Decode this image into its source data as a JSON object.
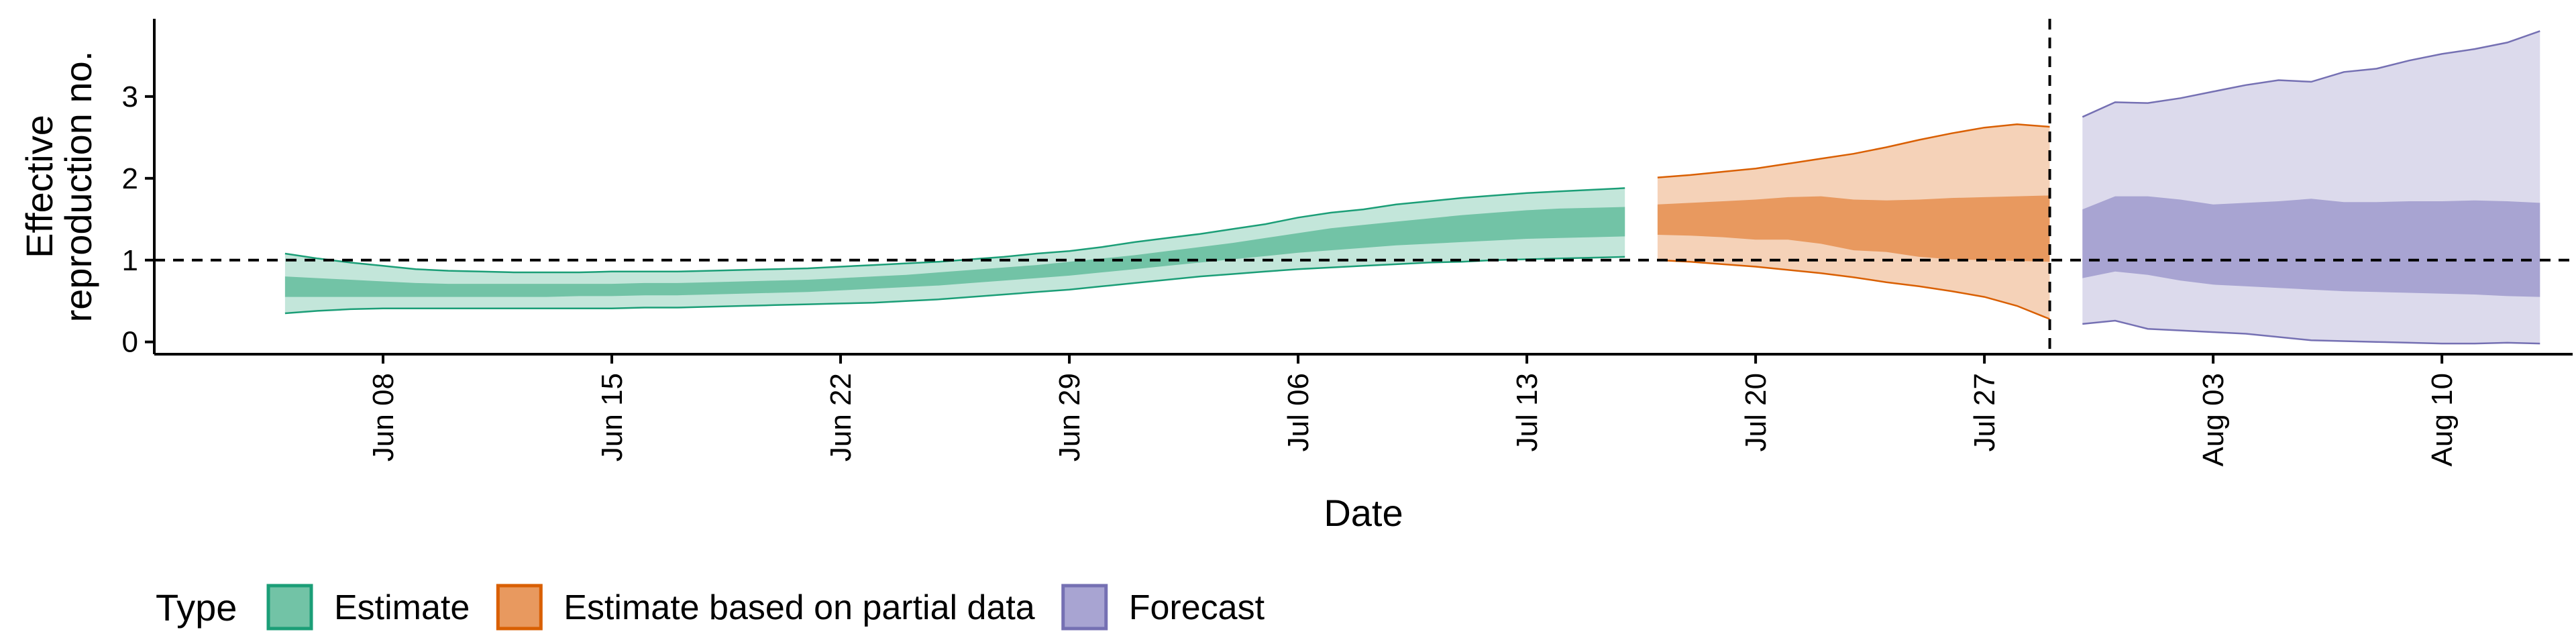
{
  "chart_data": {
    "type": "area",
    "title": "",
    "xlabel": "Date",
    "ylabel": [
      "Effective",
      "reproduction no."
    ],
    "xlim": [
      "2020-06-01",
      "2020-08-14"
    ],
    "ylim": [
      -0.15,
      3.95
    ],
    "yticks": [
      0,
      1,
      2,
      3
    ],
    "xticks": [
      {
        "date": "2020-06-08",
        "label": "Jun 08"
      },
      {
        "date": "2020-06-15",
        "label": "Jun 15"
      },
      {
        "date": "2020-06-22",
        "label": "Jun 22"
      },
      {
        "date": "2020-06-29",
        "label": "Jun 29"
      },
      {
        "date": "2020-07-06",
        "label": "Jul 06"
      },
      {
        "date": "2020-07-13",
        "label": "Jul 13"
      },
      {
        "date": "2020-07-20",
        "label": "Jul 20"
      },
      {
        "date": "2020-07-27",
        "label": "Jul 27"
      },
      {
        "date": "2020-08-03",
        "label": "Aug 03"
      },
      {
        "date": "2020-08-10",
        "label": "Aug 10"
      }
    ],
    "reference_lines": [
      {
        "axis": "y",
        "value": 1,
        "style": "dashed"
      },
      {
        "axis": "x",
        "value": "2020-07-29",
        "style": "dashed"
      }
    ],
    "legend": {
      "title": "Type",
      "position": "bottom-left",
      "entries": [
        {
          "label": "Estimate",
          "fill": "#72c3a6",
          "stroke": "#1b9e77"
        },
        {
          "label": "Estimate based on partial data",
          "fill": "#e8995f",
          "stroke": "#d95f02"
        },
        {
          "label": "Forecast",
          "fill": "#a8a4d2",
          "stroke": "#7570b3"
        }
      ]
    },
    "series": [
      {
        "name": "Estimate",
        "colors": {
          "outer": "#c3e6da",
          "inner": "#72c3a6",
          "line": "#1b9e77"
        },
        "x": [
          "2020-06-05",
          "2020-06-06",
          "2020-06-07",
          "2020-06-08",
          "2020-06-09",
          "2020-06-10",
          "2020-06-11",
          "2020-06-12",
          "2020-06-13",
          "2020-06-14",
          "2020-06-15",
          "2020-06-16",
          "2020-06-17",
          "2020-06-18",
          "2020-06-19",
          "2020-06-20",
          "2020-06-21",
          "2020-06-22",
          "2020-06-23",
          "2020-06-24",
          "2020-06-25",
          "2020-06-26",
          "2020-06-27",
          "2020-06-28",
          "2020-06-29",
          "2020-06-30",
          "2020-07-01",
          "2020-07-02",
          "2020-07-03",
          "2020-07-04",
          "2020-07-05",
          "2020-07-06",
          "2020-07-07",
          "2020-07-08",
          "2020-07-09",
          "2020-07-10",
          "2020-07-11",
          "2020-07-12",
          "2020-07-13",
          "2020-07-14",
          "2020-07-15",
          "2020-07-16"
        ],
        "outer_upper": [
          1.08,
          1.02,
          0.97,
          0.93,
          0.89,
          0.87,
          0.86,
          0.85,
          0.85,
          0.85,
          0.86,
          0.86,
          0.86,
          0.87,
          0.88,
          0.89,
          0.9,
          0.92,
          0.94,
          0.96,
          0.98,
          1.01,
          1.04,
          1.08,
          1.11,
          1.16,
          1.22,
          1.27,
          1.32,
          1.38,
          1.44,
          1.52,
          1.58,
          1.62,
          1.68,
          1.72,
          1.76,
          1.79,
          1.82,
          1.84,
          1.86,
          1.88
        ],
        "inner_upper": [
          0.8,
          0.78,
          0.76,
          0.74,
          0.72,
          0.71,
          0.71,
          0.71,
          0.71,
          0.71,
          0.71,
          0.72,
          0.72,
          0.73,
          0.74,
          0.75,
          0.76,
          0.78,
          0.8,
          0.82,
          0.85,
          0.88,
          0.91,
          0.94,
          0.98,
          1.02,
          1.06,
          1.11,
          1.16,
          1.21,
          1.27,
          1.33,
          1.39,
          1.43,
          1.47,
          1.51,
          1.55,
          1.58,
          1.61,
          1.63,
          1.64,
          1.65
        ],
        "inner_lower": [
          0.55,
          0.55,
          0.55,
          0.55,
          0.55,
          0.55,
          0.55,
          0.55,
          0.55,
          0.56,
          0.56,
          0.57,
          0.57,
          0.58,
          0.59,
          0.6,
          0.61,
          0.63,
          0.65,
          0.67,
          0.69,
          0.72,
          0.75,
          0.78,
          0.81,
          0.85,
          0.89,
          0.93,
          0.97,
          1.01,
          1.05,
          1.09,
          1.12,
          1.15,
          1.18,
          1.2,
          1.22,
          1.24,
          1.26,
          1.27,
          1.28,
          1.29
        ],
        "outer_lower": [
          0.35,
          0.38,
          0.4,
          0.41,
          0.41,
          0.41,
          0.41,
          0.41,
          0.41,
          0.41,
          0.41,
          0.42,
          0.42,
          0.43,
          0.44,
          0.45,
          0.46,
          0.47,
          0.48,
          0.5,
          0.52,
          0.55,
          0.58,
          0.61,
          0.64,
          0.68,
          0.72,
          0.76,
          0.8,
          0.83,
          0.86,
          0.89,
          0.91,
          0.93,
          0.95,
          0.97,
          0.98,
          1.0,
          1.01,
          1.02,
          1.03,
          1.04
        ]
      },
      {
        "name": "Estimate based on partial data",
        "colors": {
          "outer": "#f5d2b8",
          "inner": "#e8995f",
          "line": "#d95f02"
        },
        "x": [
          "2020-07-17",
          "2020-07-18",
          "2020-07-19",
          "2020-07-20",
          "2020-07-21",
          "2020-07-22",
          "2020-07-23",
          "2020-07-24",
          "2020-07-25",
          "2020-07-26",
          "2020-07-27",
          "2020-07-28",
          "2020-07-29"
        ],
        "outer_upper": [
          2.01,
          2.04,
          2.08,
          2.12,
          2.18,
          2.24,
          2.3,
          2.38,
          2.47,
          2.55,
          2.62,
          2.66,
          2.63
        ],
        "inner_upper": [
          1.68,
          1.7,
          1.72,
          1.74,
          1.77,
          1.78,
          1.74,
          1.73,
          1.74,
          1.76,
          1.77,
          1.78,
          1.79
        ],
        "inner_lower": [
          1.31,
          1.3,
          1.28,
          1.25,
          1.25,
          1.2,
          1.12,
          1.1,
          1.04,
          1.01,
          1.0,
          0.99,
          0.98
        ],
        "outer_lower": [
          1.0,
          0.98,
          0.95,
          0.92,
          0.88,
          0.84,
          0.79,
          0.73,
          0.68,
          0.62,
          0.55,
          0.44,
          0.28
        ]
      },
      {
        "name": "Forecast",
        "colors": {
          "outer": "#dcdaec",
          "inner": "#a8a4d2",
          "line": "#7570b3"
        },
        "x": [
          "2020-07-30",
          "2020-07-31",
          "2020-08-01",
          "2020-08-02",
          "2020-08-03",
          "2020-08-04",
          "2020-08-05",
          "2020-08-06",
          "2020-08-07",
          "2020-08-08",
          "2020-08-09",
          "2020-08-10",
          "2020-08-11",
          "2020-08-12",
          "2020-08-13"
        ],
        "outer_upper": [
          2.75,
          2.93,
          2.92,
          2.98,
          3.06,
          3.14,
          3.2,
          3.18,
          3.3,
          3.34,
          3.44,
          3.52,
          3.58,
          3.66,
          3.8
        ],
        "inner_upper": [
          1.62,
          1.78,
          1.78,
          1.74,
          1.68,
          1.7,
          1.72,
          1.75,
          1.71,
          1.71,
          1.72,
          1.72,
          1.73,
          1.72,
          1.7
        ],
        "inner_lower": [
          0.78,
          0.86,
          0.82,
          0.75,
          0.7,
          0.68,
          0.66,
          0.64,
          0.62,
          0.61,
          0.6,
          0.59,
          0.58,
          0.56,
          0.55
        ],
        "outer_lower": [
          0.22,
          0.26,
          0.16,
          0.14,
          0.12,
          0.1,
          0.06,
          0.02,
          0.01,
          0.0,
          -0.01,
          -0.02,
          -0.02,
          -0.01,
          -0.02
        ]
      }
    ]
  }
}
